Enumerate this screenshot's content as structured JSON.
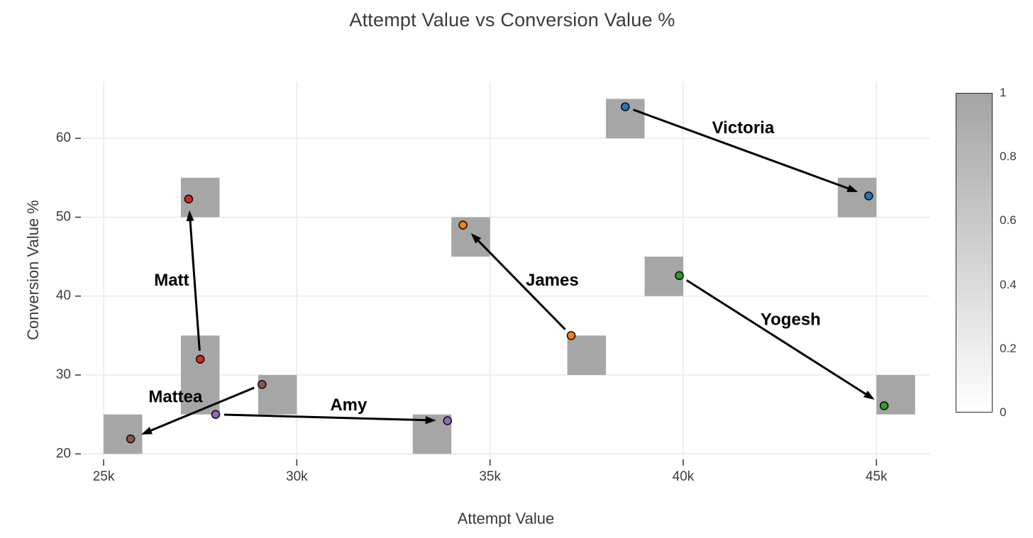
{
  "title": "Attempt Value vs Conversion Value %",
  "chart_data": {
    "type": "scatter",
    "title": "Attempt Value vs Conversion Value %",
    "xlabel": "Attempt Value",
    "ylabel": "Conversion Value %",
    "xlim": [
      24430,
      46390
    ],
    "ylim": [
      19.4,
      67.2
    ],
    "grid": true,
    "legend_position": "none",
    "x_ticks": [
      {
        "value": 25000,
        "label": "25k"
      },
      {
        "value": 30000,
        "label": "30k"
      },
      {
        "value": 35000,
        "label": "35k"
      },
      {
        "value": 40000,
        "label": "40k"
      },
      {
        "value": 45000,
        "label": "45k"
      }
    ],
    "y_ticks": [
      {
        "value": 20,
        "label": "20"
      },
      {
        "value": 30,
        "label": "30"
      },
      {
        "value": 40,
        "label": "40"
      },
      {
        "value": 50,
        "label": "50"
      },
      {
        "value": 60,
        "label": "60"
      }
    ],
    "series": [
      {
        "name": "Victoria",
        "color": "#1f77b4",
        "from": {
          "x": 38500,
          "y": 64.0
        },
        "to": {
          "x": 44800,
          "y": 52.7
        },
        "label_at": {
          "x": 41550,
          "y": 61.2
        }
      },
      {
        "name": "Matt",
        "color": "#d62728",
        "from": {
          "x": 27500,
          "y": 32.0
        },
        "to": {
          "x": 27200,
          "y": 52.3
        },
        "label_at": {
          "x": 26760,
          "y": 41.9
        }
      },
      {
        "name": "James",
        "color": "#ff7f0e",
        "from": {
          "x": 37100,
          "y": 35.0
        },
        "to": {
          "x": 34300,
          "y": 49.0
        },
        "label_at": {
          "x": 36610,
          "y": 41.9
        }
      },
      {
        "name": "Yogesh",
        "color": "#2ca02c",
        "from": {
          "x": 39900,
          "y": 42.6
        },
        "to": {
          "x": 45200,
          "y": 26.1
        },
        "label_at": {
          "x": 42780,
          "y": 36.9
        }
      },
      {
        "name": "Amy",
        "color": "#9467bd",
        "from": {
          "x": 27900,
          "y": 25.0
        },
        "to": {
          "x": 33900,
          "y": 24.2
        },
        "label_at": {
          "x": 31340,
          "y": 26.1
        }
      },
      {
        "name": "Mattea",
        "color": "#8c564b",
        "from": {
          "x": 29100,
          "y": 28.8
        },
        "to": {
          "x": 25700,
          "y": 21.9
        },
        "label_at": {
          "x": 26860,
          "y": 27.1
        }
      }
    ],
    "density_bins": {
      "bin_size": {
        "x": 1000,
        "y": 5
      },
      "fill": "#a6a6a6",
      "cells": [
        {
          "x0": 38000,
          "y0": 60
        },
        {
          "x0": 44000,
          "y0": 50
        },
        {
          "x0": 27000,
          "y0": 50
        },
        {
          "x0": 27000,
          "y0": 30
        },
        {
          "x0": 27000,
          "y0": 25
        },
        {
          "x0": 33000,
          "y0": 20
        },
        {
          "x0": 34000,
          "y0": 45
        },
        {
          "x0": 37000,
          "y0": 30
        },
        {
          "x0": 39000,
          "y0": 40
        },
        {
          "x0": 45000,
          "y0": 25
        },
        {
          "x0": 29000,
          "y0": 25
        },
        {
          "x0": 25000,
          "y0": 20
        }
      ]
    },
    "colorbar": {
      "ticks": [
        {
          "value": 1,
          "label": "1"
        },
        {
          "value": 0.8,
          "label": "0.8"
        },
        {
          "value": 0.6,
          "label": "0.6"
        },
        {
          "value": 0.4,
          "label": "0.4"
        },
        {
          "value": 0.2,
          "label": "0.2"
        },
        {
          "value": 0,
          "label": "0"
        }
      ],
      "top_color": "#a4a4a4",
      "bottom_color": "#ffffff"
    }
  },
  "colors": {
    "grid": "#e7e7e7",
    "tick": "#3c3c3c",
    "arrow": "#000000",
    "marker_outline": "#111111",
    "annotation_text": "#000000"
  }
}
